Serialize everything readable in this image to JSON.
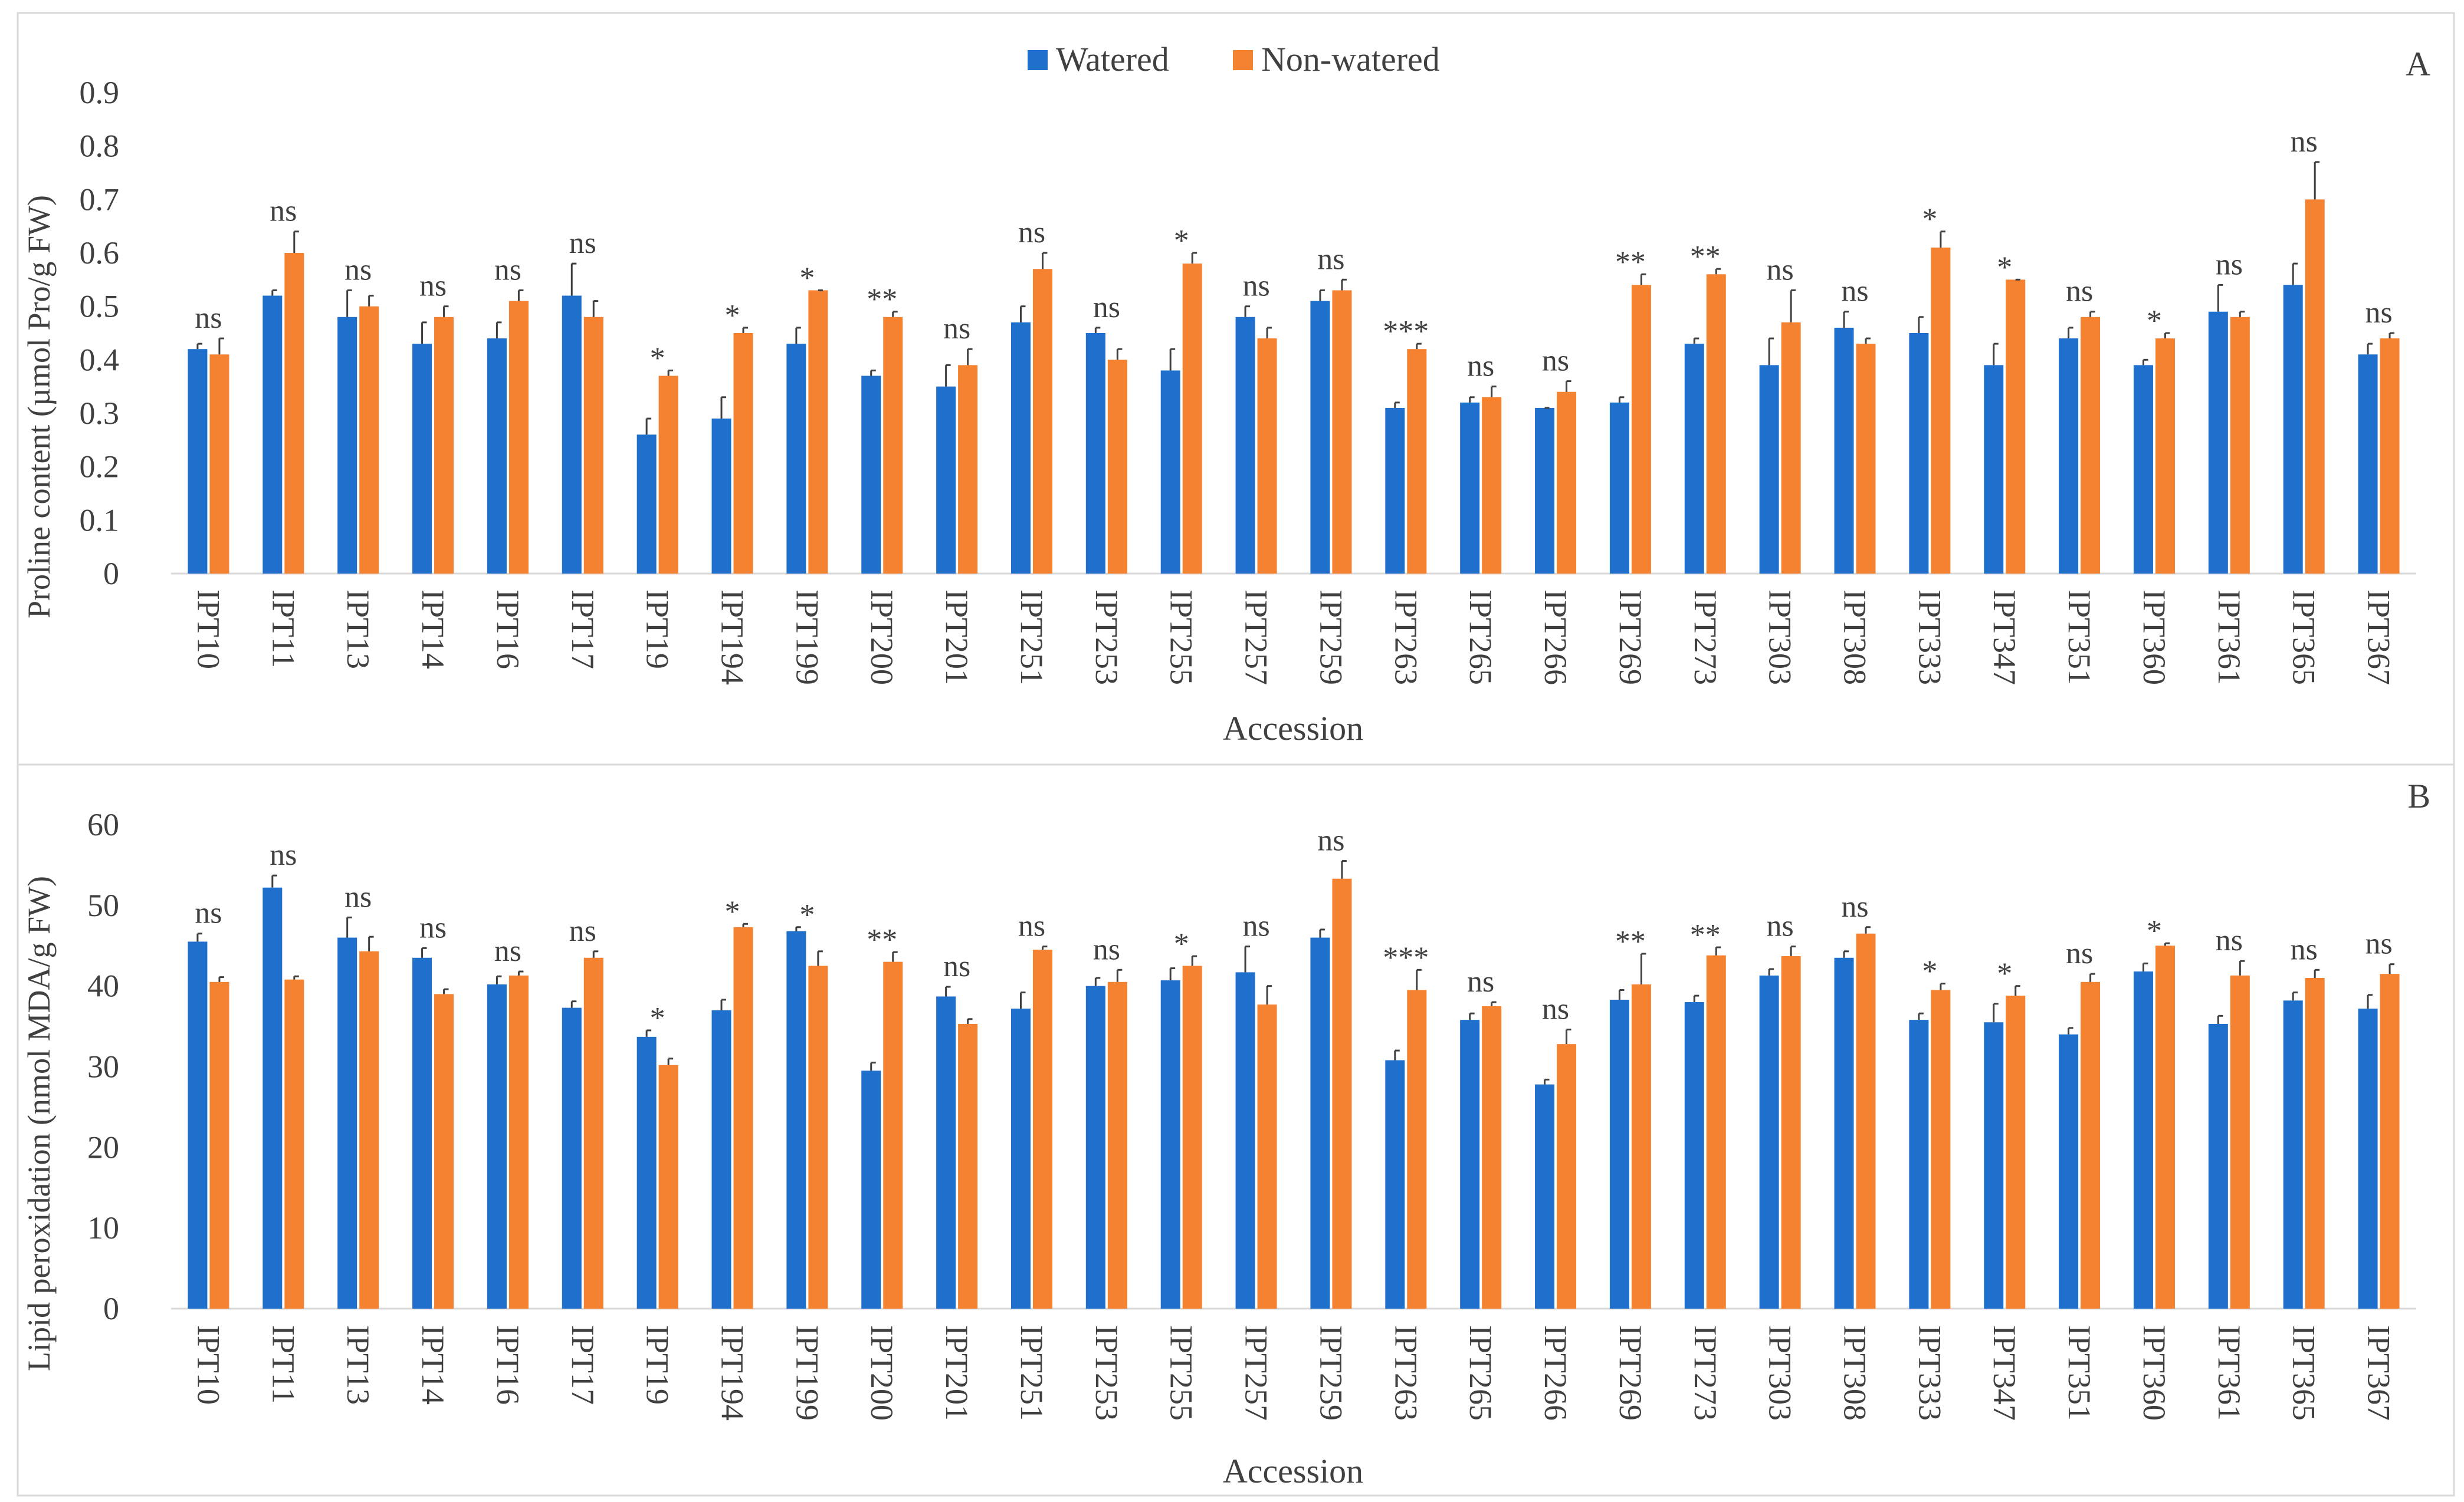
{
  "legend": {
    "watered_label": "Watered",
    "non_watered_label": "Non-watered"
  },
  "colors": {
    "watered": "#1f6fcc",
    "non_watered": "#f58231",
    "axis_text": "#404040",
    "error_bar": "#404040"
  },
  "chart_data": [
    {
      "type": "bar",
      "panel_label": "A",
      "title": "",
      "xlabel": "Accession",
      "ylabel": "Proline content (µmol Pro/g FW)",
      "ylim": [
        0,
        0.9
      ],
      "yticks": [
        0,
        0.1,
        0.2,
        0.3,
        0.4,
        0.5,
        0.6,
        0.7,
        0.8,
        0.9
      ],
      "ytick_labels": [
        "0",
        "0.1",
        "0.2",
        "0.3",
        "0.4",
        "0.5",
        "0.6",
        "0.7",
        "0.8",
        "0.9"
      ],
      "grid": false,
      "legend_position": "top-center",
      "categories": [
        "IPT10",
        "IPT11",
        "IPT13",
        "IPT14",
        "IPT16",
        "IPT17",
        "IPT19",
        "IPT194",
        "IPT199",
        "IPT200",
        "IPT201",
        "IPT251",
        "IPT253",
        "IPT255",
        "IPT257",
        "IPT259",
        "IPT263",
        "IPT265",
        "IPT266",
        "IPT269",
        "IPT273",
        "IPT303",
        "IPT308",
        "IPT333",
        "IPT347",
        "IPT351",
        "IPT360",
        "IPT361",
        "IPT365",
        "IPT367"
      ],
      "series": [
        {
          "name": "Watered",
          "values": [
            0.42,
            0.52,
            0.48,
            0.43,
            0.44,
            0.52,
            0.26,
            0.29,
            0.43,
            0.37,
            0.35,
            0.47,
            0.45,
            0.38,
            0.48,
            0.51,
            0.31,
            0.32,
            0.31,
            0.32,
            0.43,
            0.39,
            0.46,
            0.45,
            0.39,
            0.44,
            0.39,
            0.49,
            0.54,
            0.41
          ],
          "errors": [
            0.01,
            0.01,
            0.05,
            0.04,
            0.03,
            0.06,
            0.03,
            0.04,
            0.03,
            0.01,
            0.04,
            0.03,
            0.01,
            0.04,
            0.02,
            0.02,
            0.01,
            0.01,
            0.0,
            0.01,
            0.01,
            0.05,
            0.03,
            0.03,
            0.04,
            0.02,
            0.01,
            0.05,
            0.04,
            0.02
          ]
        },
        {
          "name": "Non-watered",
          "values": [
            0.41,
            0.6,
            0.5,
            0.48,
            0.51,
            0.48,
            0.37,
            0.45,
            0.53,
            0.48,
            0.39,
            0.57,
            0.4,
            0.58,
            0.44,
            0.53,
            0.42,
            0.33,
            0.34,
            0.54,
            0.56,
            0.47,
            0.43,
            0.61,
            0.55,
            0.48,
            0.44,
            0.48,
            0.7,
            0.44
          ],
          "errors": [
            0.03,
            0.04,
            0.02,
            0.02,
            0.02,
            0.03,
            0.01,
            0.01,
            0.0,
            0.01,
            0.03,
            0.03,
            0.02,
            0.02,
            0.02,
            0.02,
            0.01,
            0.02,
            0.02,
            0.02,
            0.01,
            0.06,
            0.01,
            0.03,
            0.0,
            0.01,
            0.01,
            0.01,
            0.07,
            0.01
          ]
        }
      ],
      "significance": [
        "ns",
        "ns",
        "ns",
        "ns",
        "ns",
        "ns",
        "*",
        "*",
        "*",
        "**",
        "ns",
        "ns",
        "ns",
        "*",
        "ns",
        "ns",
        "***",
        "ns",
        "ns",
        "**",
        "**",
        "ns",
        "ns",
        "*",
        "*",
        "ns",
        "*",
        "ns",
        "ns",
        "ns"
      ]
    },
    {
      "type": "bar",
      "panel_label": "B",
      "title": "",
      "xlabel": "Accession",
      "ylabel": "Lipid peroxidation (nmol MDA/g FW)",
      "ylim": [
        0,
        60
      ],
      "yticks": [
        0,
        10,
        20,
        30,
        40,
        50,
        60
      ],
      "ytick_labels": [
        "0",
        "10",
        "20",
        "30",
        "40",
        "50",
        "60"
      ],
      "grid": false,
      "categories": [
        "IPT10",
        "IPT11",
        "IPT13",
        "IPT14",
        "IPT16",
        "IPT17",
        "IPT19",
        "IPT194",
        "IPT199",
        "IPT200",
        "IPT201",
        "IPT251",
        "IPT253",
        "IPT255",
        "IPT257",
        "IPT259",
        "IPT263",
        "IPT265",
        "IPT266",
        "IPT269",
        "IPT273",
        "IPT303",
        "IPT308",
        "IPT333",
        "IPT347",
        "IPT351",
        "IPT360",
        "IPT361",
        "IPT365",
        "IPT367"
      ],
      "series": [
        {
          "name": "Watered",
          "values": [
            45.5,
            52.2,
            46.0,
            43.5,
            40.2,
            37.3,
            33.7,
            37.0,
            46.8,
            29.5,
            38.7,
            37.2,
            40.0,
            40.7,
            41.7,
            46.0,
            30.8,
            35.8,
            27.8,
            38.3,
            38.0,
            41.3,
            43.5,
            35.8,
            35.5,
            34.0,
            41.8,
            35.3,
            38.2,
            37.2
          ],
          "errors": [
            1.0,
            1.5,
            2.5,
            1.2,
            1.0,
            0.8,
            0.8,
            1.3,
            0.5,
            1.0,
            1.2,
            2.0,
            1.0,
            1.5,
            3.2,
            1.0,
            1.2,
            0.8,
            0.6,
            1.2,
            0.8,
            0.8,
            0.8,
            0.8,
            2.3,
            0.8,
            1.0,
            1.0,
            1.0,
            1.7
          ]
        },
        {
          "name": "Non-watered",
          "values": [
            40.5,
            40.8,
            44.3,
            39.0,
            41.3,
            43.5,
            30.2,
            47.3,
            42.5,
            43.0,
            35.3,
            44.5,
            40.5,
            42.5,
            37.7,
            53.3,
            39.5,
            37.5,
            32.8,
            40.2,
            43.8,
            43.7,
            46.5,
            39.5,
            38.8,
            40.5,
            45.0,
            41.3,
            41.0,
            41.5
          ],
          "errors": [
            0.6,
            0.4,
            1.8,
            0.6,
            0.5,
            0.8,
            0.8,
            0.4,
            1.8,
            1.2,
            0.6,
            0.4,
            1.5,
            1.2,
            2.3,
            2.2,
            2.5,
            0.5,
            1.8,
            3.8,
            1.0,
            1.2,
            0.8,
            0.8,
            1.2,
            1.0,
            0.3,
            1.8,
            1.0,
            1.2
          ]
        }
      ],
      "significance": [
        "ns",
        "ns",
        "ns",
        "ns",
        "ns",
        "ns",
        "*",
        "*",
        "*",
        "**",
        "ns",
        "ns",
        "ns",
        "*",
        "ns",
        "ns",
        "***",
        "ns",
        "ns",
        "**",
        "**",
        "ns",
        "ns",
        "*",
        "*",
        "ns",
        "*",
        "ns",
        "ns",
        "ns"
      ]
    }
  ]
}
